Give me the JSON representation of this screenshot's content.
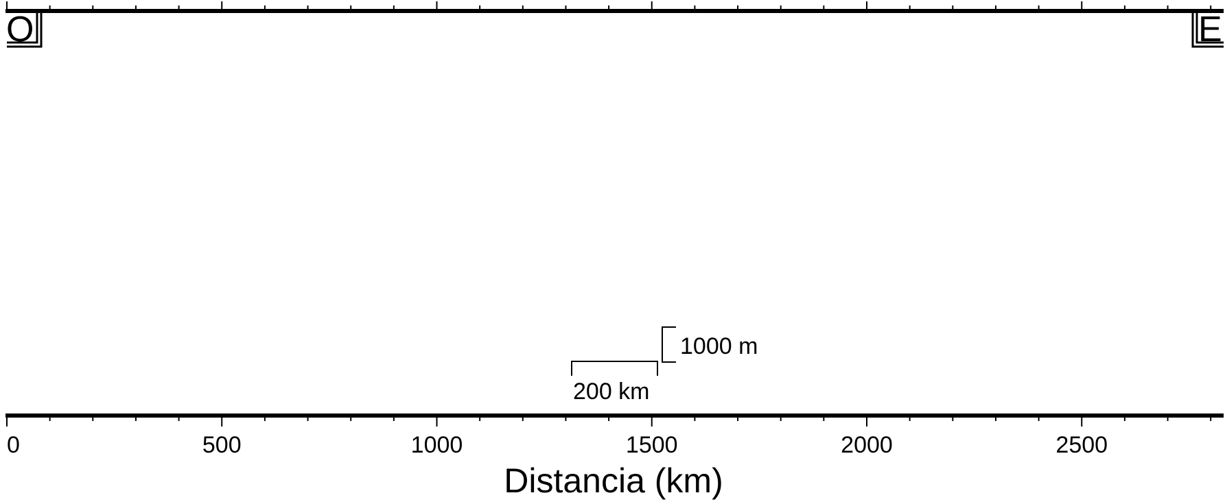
{
  "chart_data": {
    "type": "profile",
    "xlabel": "Distancia (km)",
    "xlim": [
      0,
      2840
    ],
    "x_ticks": [
      0,
      500,
      1000,
      1500,
      2000,
      2500
    ],
    "x_tick_labels": [
      "0",
      "500",
      "1000",
      "1500",
      "2000",
      "2500"
    ],
    "x_minor_tick_step": 100,
    "grid": false,
    "series": []
  },
  "profile": {
    "start_label": "O",
    "end_label": "E",
    "horizontal_scale": {
      "value": 200,
      "label": "200 km"
    },
    "vertical_scale": {
      "value": 1000,
      "label": "1000 m"
    }
  }
}
